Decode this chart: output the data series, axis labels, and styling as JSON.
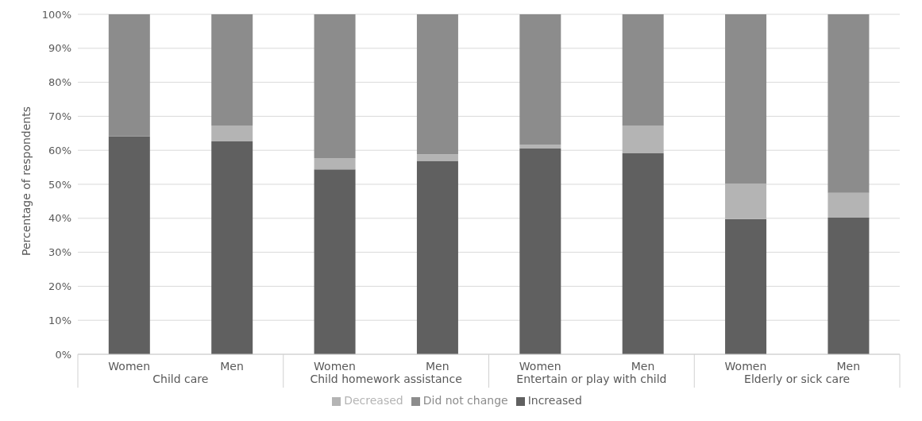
{
  "chart_data": {
    "type": "bar",
    "stacked": true,
    "ylabel": "Percentage of respondents",
    "categories": [
      "Women",
      "Men",
      "Women",
      "Men",
      "Women",
      "Men",
      "Women",
      "Men"
    ],
    "annotations": [
      "Child care",
      "Child homework assistance",
      "Entertain or play with child",
      "Elderly or sick care"
    ],
    "series": [
      {
        "name": "Increased",
        "color": "#606060",
        "values": [
          64.1,
          62.6,
          54.4,
          56.9,
          60.5,
          59.1,
          39.8,
          40.2
        ]
      },
      {
        "name": "Decreased",
        "color": "#b4b4b4",
        "values": [
          0,
          4.7,
          3.3,
          1.9,
          1.1,
          8.2,
          10.4,
          7.3
        ]
      },
      {
        "name": "Did not change",
        "color": "#8c8c8c",
        "values": [
          35.9,
          32.7,
          42.3,
          41.2,
          38.4,
          32.7,
          49.8,
          52.5
        ]
      }
    ],
    "ylim": [
      0,
      100
    ],
    "yticks": [
      {
        "value": 0,
        "label": "0%"
      },
      {
        "value": 10,
        "label": "10%"
      },
      {
        "value": 20,
        "label": "20%"
      },
      {
        "value": 30,
        "label": "30%"
      },
      {
        "value": 40,
        "label": "40%"
      },
      {
        "value": 50,
        "label": "50%"
      },
      {
        "value": 60,
        "label": "60%"
      },
      {
        "value": 70,
        "label": "70%"
      },
      {
        "value": 80,
        "label": "80%"
      },
      {
        "value": 90,
        "label": "90%"
      },
      {
        "value": 100,
        "label": "100%"
      }
    ],
    "grid": "y",
    "legend": "bottom"
  }
}
